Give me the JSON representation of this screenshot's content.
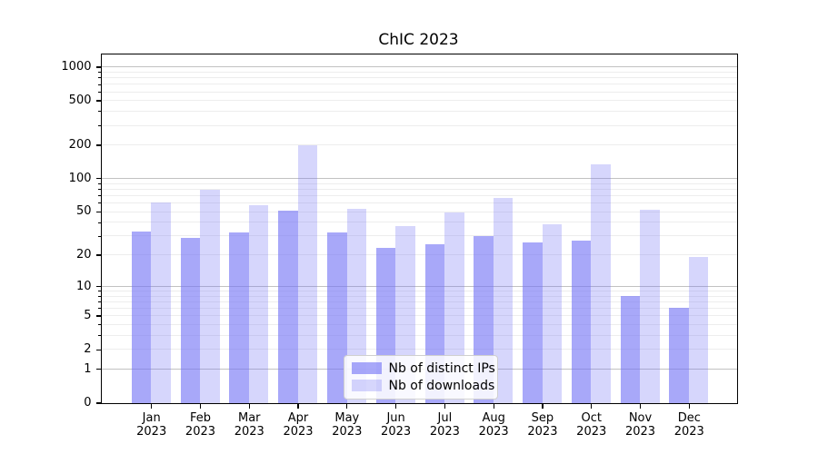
{
  "chart_data": {
    "type": "bar",
    "title": "ChIC 2023",
    "categories": [
      "Jan",
      "Feb",
      "Mar",
      "Apr",
      "May",
      "Jun",
      "Jul",
      "Aug",
      "Sep",
      "Oct",
      "Nov",
      "Dec"
    ],
    "category_year": "2023",
    "series": [
      {
        "name": "Nb of distinct IPs",
        "color": "#7373f5",
        "opacity": 0.62,
        "values": [
          33,
          29,
          32,
          51,
          32,
          23,
          25,
          30,
          26,
          27,
          8,
          6
        ]
      },
      {
        "name": "Nb of downloads",
        "color": "#7373f5",
        "opacity": 0.29,
        "values": [
          61,
          79,
          57,
          199,
          53,
          37,
          49,
          67,
          38,
          135,
          52,
          19
        ]
      }
    ],
    "xlabel": "",
    "ylabel": "",
    "yscale": "log10(1+y)",
    "y_ticks": [
      0,
      1,
      2,
      5,
      10,
      20,
      50,
      100,
      200,
      500,
      1000
    ],
    "ylim": [
      0,
      1290
    ],
    "grid": true,
    "legend_position": "lower center"
  }
}
